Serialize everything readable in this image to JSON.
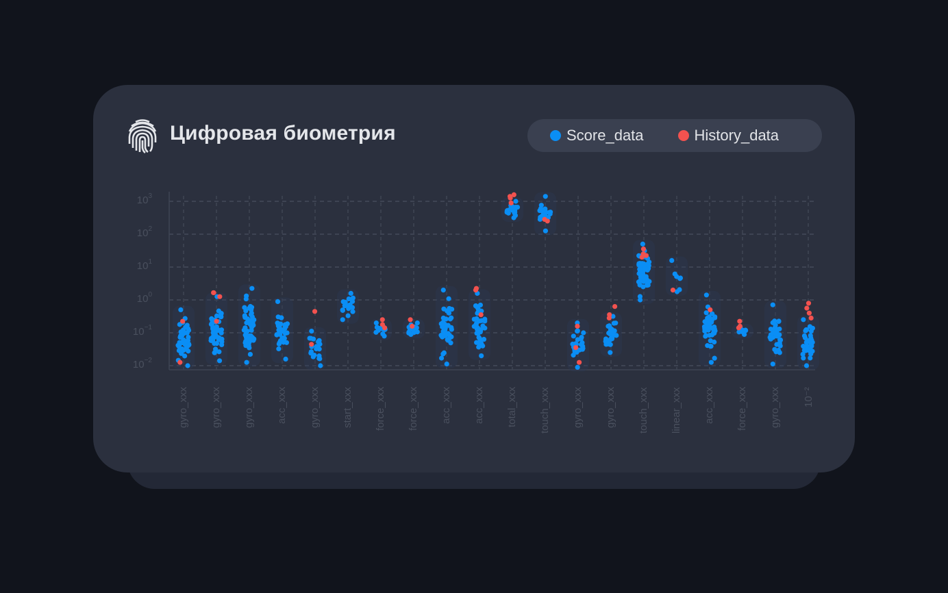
{
  "header": {
    "icon": "fingerprint-icon",
    "title": "Цифровая биометрия"
  },
  "legend": {
    "items": [
      {
        "label": "Score_data",
        "color": "#0a8ef5"
      },
      {
        "label": "History_data",
        "color": "#f2524f"
      }
    ]
  },
  "colors": {
    "background": "#11141c",
    "card": "#2b303e",
    "grid": "#454b5a",
    "score": "#0a8ef5",
    "history": "#f2524f"
  },
  "chart_data": {
    "type": "scatter",
    "title": "Цифровая биометрия",
    "xlabel": "",
    "ylabel": "",
    "yscale": "log",
    "ylim": [
      0.01,
      1000
    ],
    "y_ticks": [
      "10^-2",
      "10^-1",
      "10^0",
      "10^1",
      "10^2",
      "10^3"
    ],
    "grid": true,
    "legend_position": "top-right",
    "categories": [
      "gyro_xxx",
      "gyro_xxx",
      "gyro_xxx",
      "acc_xxx",
      "gyro_xxx",
      "start_xxx",
      "force_xxx",
      "force_xxx",
      "acc_xxx",
      "acc_xxx",
      "total_xxx",
      "touch_xxx",
      "gyro_xxx",
      "gyro_xxx",
      "touch_xxx",
      "linear_xxx",
      "acc_xxx",
      "force_xxx",
      "gyro_xxx",
      "10^-2"
    ],
    "series": [
      {
        "name": "Score_data",
        "color": "#0a8ef5",
        "ranges_log10": [
          [
            -2.0,
            -0.3
          ],
          [
            -1.85,
            0.1
          ],
          [
            -1.9,
            0.35
          ],
          [
            -1.8,
            -0.05
          ],
          [
            -2.0,
            -0.95
          ],
          [
            -0.6,
            0.2
          ],
          [
            -1.1,
            -0.7
          ],
          [
            -1.05,
            -0.7
          ],
          [
            -1.95,
            0.3
          ],
          [
            -1.7,
            0.2
          ],
          [
            2.5,
            3.0
          ],
          [
            2.1,
            3.15
          ],
          [
            -2.05,
            -0.7
          ],
          [
            -1.6,
            -0.5
          ],
          [
            0.0,
            1.7
          ],
          [
            0.25,
            1.2
          ],
          [
            -1.9,
            0.15
          ],
          [
            -1.05,
            -0.85
          ],
          [
            -1.95,
            -0.15
          ],
          [
            -2.0,
            -0.6
          ]
        ],
        "approx_counts": [
          45,
          50,
          55,
          35,
          20,
          18,
          15,
          15,
          40,
          40,
          20,
          22,
          25,
          30,
          60,
          8,
          45,
          10,
          35,
          35
        ]
      },
      {
        "name": "History_data",
        "color": "#f2524f",
        "points_log10": [
          [
            0,
            -0.65
          ],
          [
            0,
            -1.9
          ],
          [
            1,
            0.22
          ],
          [
            1,
            0.22
          ],
          [
            1,
            0.1
          ],
          [
            1,
            -0.65
          ],
          [
            4,
            -0.35
          ],
          [
            4,
            -1.35
          ],
          [
            6,
            -0.6
          ],
          [
            6,
            -0.75
          ],
          [
            6,
            -0.85
          ],
          [
            7,
            -0.6
          ],
          [
            7,
            -0.8
          ],
          [
            9,
            0.3
          ],
          [
            9,
            0.35
          ],
          [
            9,
            -0.45
          ],
          [
            10,
            3.2
          ],
          [
            10,
            3.15
          ],
          [
            10,
            3.1
          ],
          [
            10,
            2.95
          ],
          [
            11,
            2.4
          ],
          [
            11,
            2.45
          ],
          [
            12,
            -0.8
          ],
          [
            12,
            -1.45
          ],
          [
            12,
            -1.9
          ],
          [
            13,
            -0.45
          ],
          [
            13,
            -0.2
          ],
          [
            13,
            -0.55
          ],
          [
            14,
            1.55
          ],
          [
            14,
            1.4
          ],
          [
            14,
            1.35
          ],
          [
            14,
            1.3
          ],
          [
            15,
            0.3
          ],
          [
            16,
            -0.3
          ],
          [
            17,
            -0.65
          ],
          [
            17,
            -0.8
          ],
          [
            17,
            -0.85
          ],
          [
            19,
            -0.1
          ],
          [
            19,
            -0.25
          ],
          [
            19,
            -0.4
          ],
          [
            19,
            -0.55
          ]
        ]
      }
    ]
  }
}
